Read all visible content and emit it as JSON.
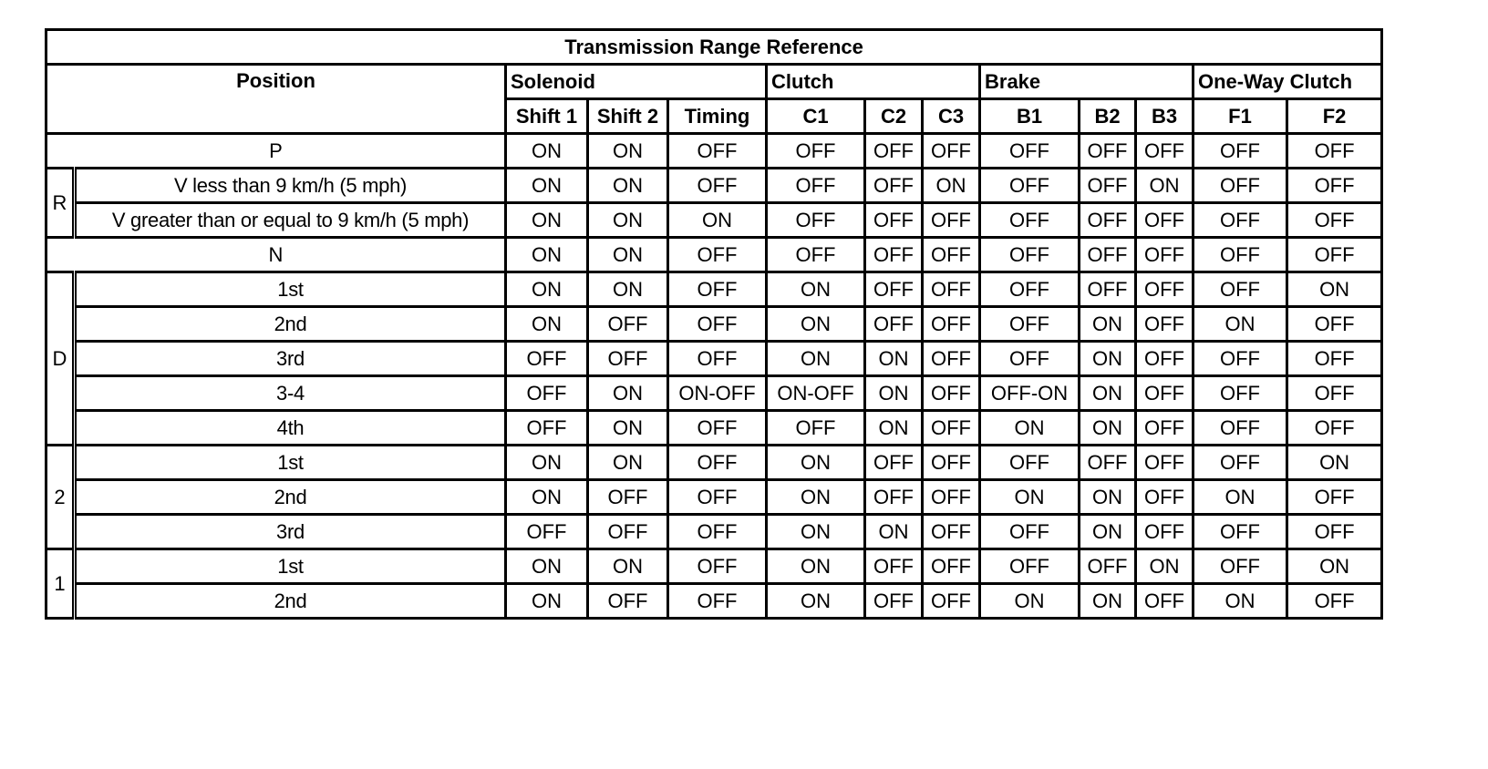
{
  "title": "Transmission Range Reference",
  "header": {
    "position": "Position",
    "groups": [
      {
        "label": "Solenoid",
        "columns": [
          "Shift 1",
          "Shift 2",
          "Timing"
        ]
      },
      {
        "label": "Clutch",
        "columns": [
          "C1",
          "C2",
          "C3"
        ]
      },
      {
        "label": "Brake",
        "columns": [
          "B1",
          "B2",
          "B3"
        ]
      },
      {
        "label": "One-Way Clutch",
        "columns": [
          "F1",
          "F2"
        ]
      }
    ]
  },
  "positions": [
    {
      "label": "P",
      "rows": [
        {
          "values": [
            "ON",
            "ON",
            "OFF",
            "OFF",
            "OFF",
            "OFF",
            "OFF",
            "OFF",
            "OFF",
            "OFF",
            "OFF"
          ]
        }
      ]
    },
    {
      "label": "R",
      "rows": [
        {
          "label": "V less than 9 km/h (5 mph)",
          "values": [
            "ON",
            "ON",
            "OFF",
            "OFF",
            "OFF",
            "ON",
            "OFF",
            "OFF",
            "ON",
            "OFF",
            "OFF"
          ]
        },
        {
          "label": "V greater than or equal to 9 km/h (5 mph)",
          "values": [
            "ON",
            "ON",
            "ON",
            "OFF",
            "OFF",
            "OFF",
            "OFF",
            "OFF",
            "OFF",
            "OFF",
            "OFF"
          ]
        }
      ]
    },
    {
      "label": "N",
      "rows": [
        {
          "values": [
            "ON",
            "ON",
            "OFF",
            "OFF",
            "OFF",
            "OFF",
            "OFF",
            "OFF",
            "OFF",
            "OFF",
            "OFF"
          ]
        }
      ]
    },
    {
      "label": "D",
      "rows": [
        {
          "label": "1st",
          "values": [
            "ON",
            "ON",
            "OFF",
            "ON",
            "OFF",
            "OFF",
            "OFF",
            "OFF",
            "OFF",
            "OFF",
            "ON"
          ]
        },
        {
          "label": "2nd",
          "values": [
            "ON",
            "OFF",
            "OFF",
            "ON",
            "OFF",
            "OFF",
            "OFF",
            "ON",
            "OFF",
            "ON",
            "OFF"
          ]
        },
        {
          "label": "3rd",
          "values": [
            "OFF",
            "OFF",
            "OFF",
            "ON",
            "ON",
            "OFF",
            "OFF",
            "ON",
            "OFF",
            "OFF",
            "OFF"
          ]
        },
        {
          "label": "3-4",
          "values": [
            "OFF",
            "ON",
            "ON-OFF",
            "ON-OFF",
            "ON",
            "OFF",
            "OFF-ON",
            "ON",
            "OFF",
            "OFF",
            "OFF"
          ]
        },
        {
          "label": "4th",
          "values": [
            "OFF",
            "ON",
            "OFF",
            "OFF",
            "ON",
            "OFF",
            "ON",
            "ON",
            "OFF",
            "OFF",
            "OFF"
          ]
        }
      ]
    },
    {
      "label": "2",
      "rows": [
        {
          "label": "1st",
          "values": [
            "ON",
            "ON",
            "OFF",
            "ON",
            "OFF",
            "OFF",
            "OFF",
            "OFF",
            "OFF",
            "OFF",
            "ON"
          ]
        },
        {
          "label": "2nd",
          "values": [
            "ON",
            "OFF",
            "OFF",
            "ON",
            "OFF",
            "OFF",
            "ON",
            "ON",
            "OFF",
            "ON",
            "OFF"
          ]
        },
        {
          "label": "3rd",
          "values": [
            "OFF",
            "OFF",
            "OFF",
            "ON",
            "ON",
            "OFF",
            "OFF",
            "ON",
            "OFF",
            "OFF",
            "OFF"
          ]
        }
      ]
    },
    {
      "label": "1",
      "rows": [
        {
          "label": "1st",
          "values": [
            "ON",
            "ON",
            "OFF",
            "ON",
            "OFF",
            "OFF",
            "OFF",
            "OFF",
            "ON",
            "OFF",
            "ON"
          ]
        },
        {
          "label": "2nd",
          "values": [
            "ON",
            "OFF",
            "OFF",
            "ON",
            "OFF",
            "OFF",
            "ON",
            "ON",
            "OFF",
            "ON",
            "OFF"
          ]
        }
      ]
    }
  ]
}
